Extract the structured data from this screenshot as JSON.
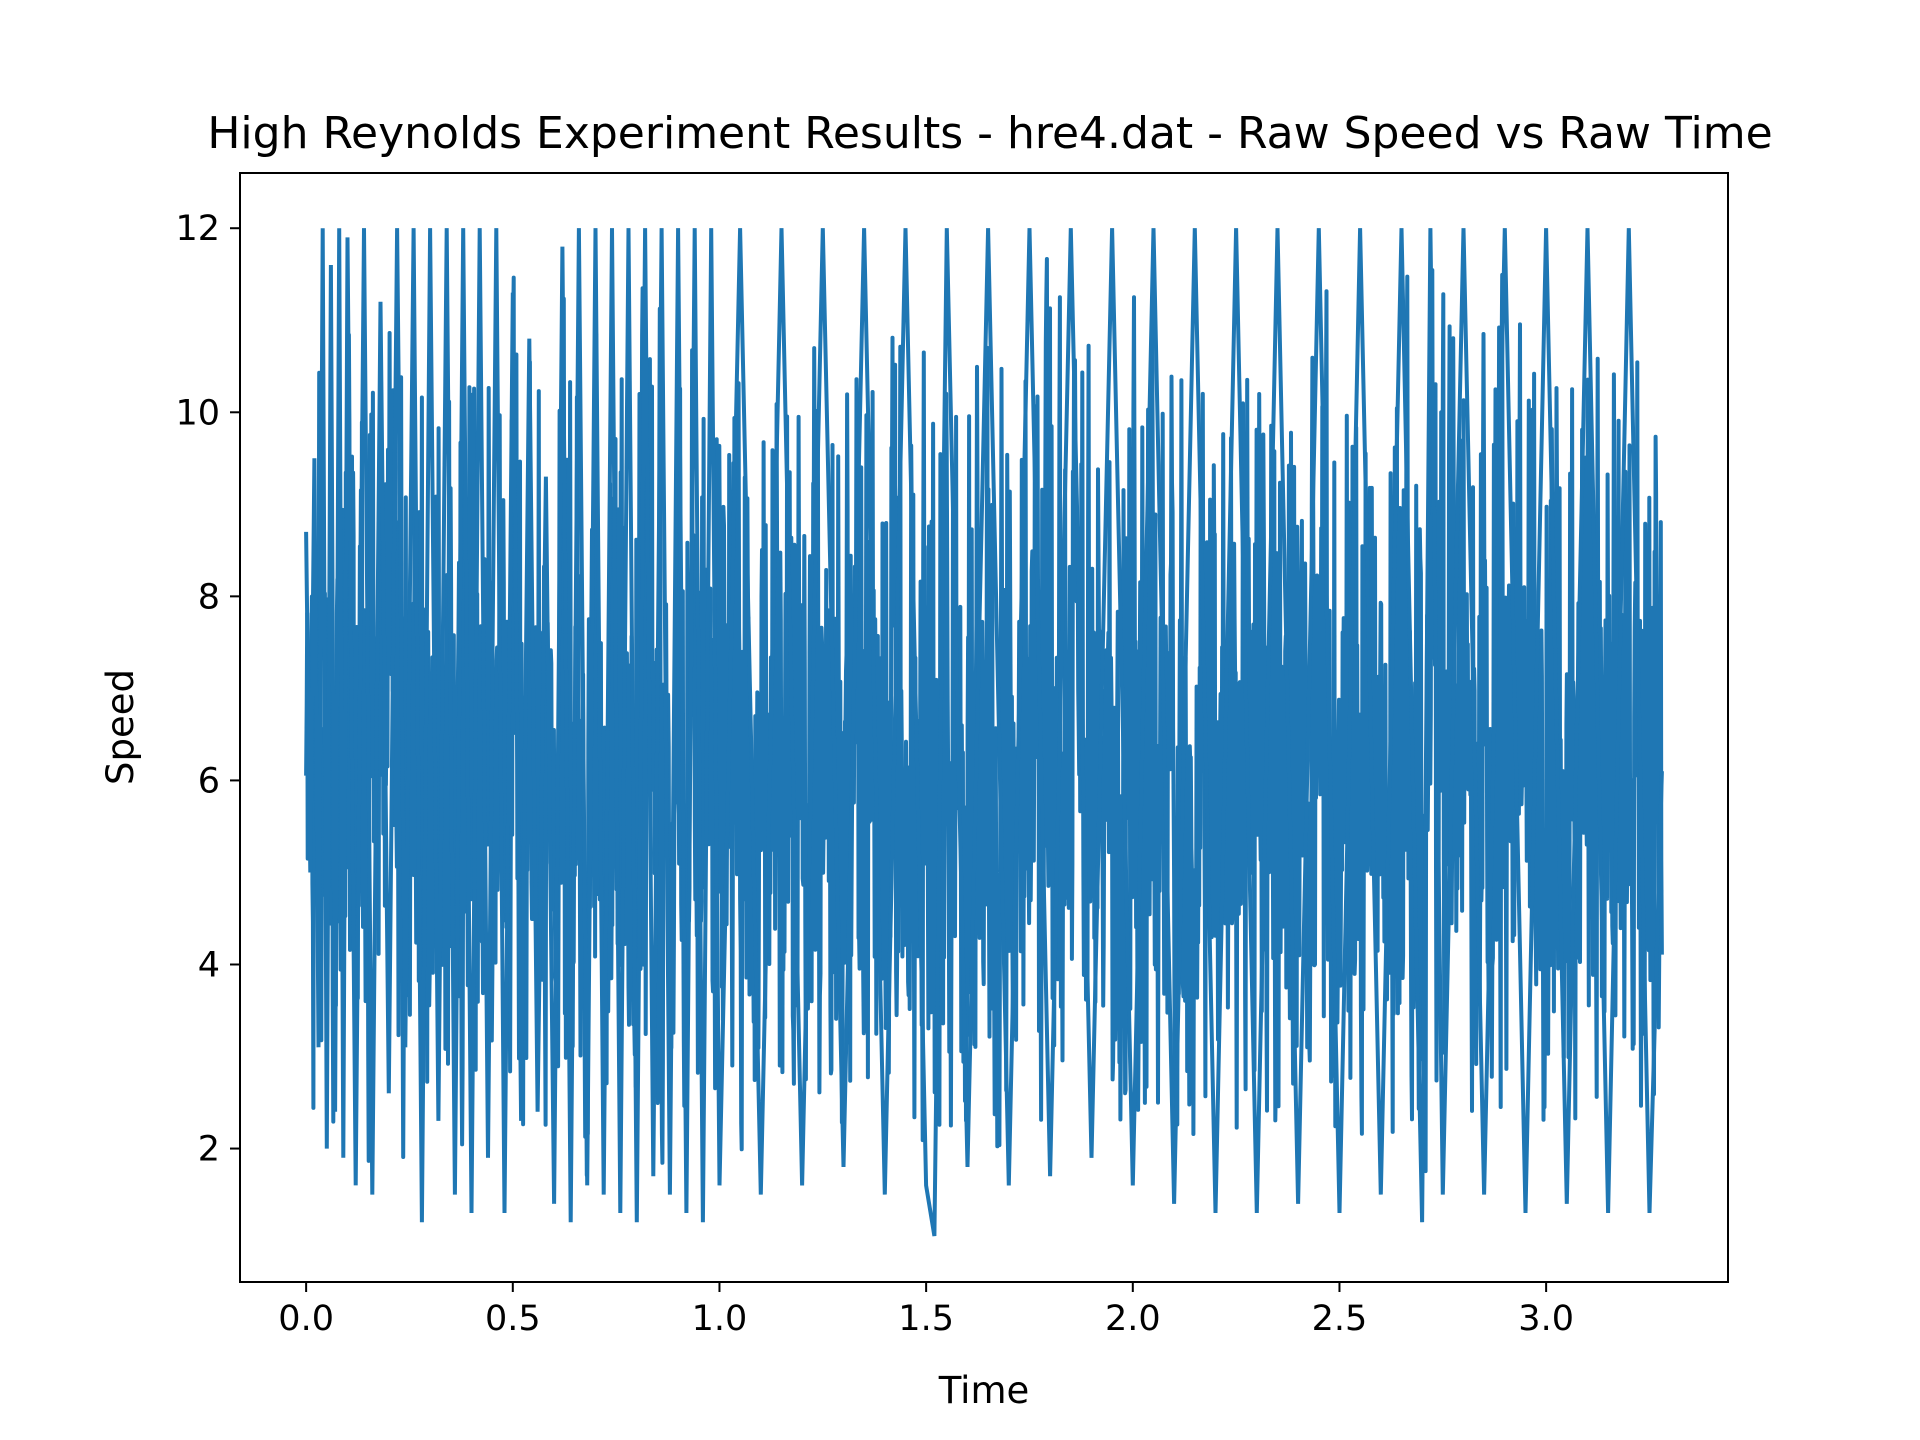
{
  "chart_data": {
    "type": "line",
    "title": "High Reynolds Experiment Results - hre4.dat - Raw Speed vs Raw Time",
    "xlabel": "Time",
    "ylabel": "Speed",
    "xlim": [
      -0.16,
      3.44
    ],
    "ylim": [
      0.55,
      12.6
    ],
    "xticks": [
      0.0,
      0.5,
      1.0,
      1.5,
      2.0,
      2.5,
      3.0
    ],
    "xtick_labels": [
      "0.0",
      "0.5",
      "1.0",
      "1.5",
      "2.0",
      "2.5",
      "3.0"
    ],
    "yticks": [
      2,
      4,
      6,
      8,
      10,
      12
    ],
    "ytick_labels": [
      "2",
      "4",
      "6",
      "8",
      "10",
      "12"
    ],
    "grid": false,
    "legend": "none",
    "series": [
      {
        "color": "#1f77b4",
        "x_range": [
          0.0,
          3.28
        ],
        "y_range": [
          1.05,
          12.0
        ],
        "y_mean_approx": 6.0,
        "description_note": "dense noisy raw signal; approximate envelope points below",
        "x": [
          0.0,
          0.01,
          0.02,
          0.03,
          0.04,
          0.05,
          0.06,
          0.07,
          0.08,
          0.09,
          0.1,
          0.12,
          0.14,
          0.16,
          0.18,
          0.2,
          0.22,
          0.24,
          0.26,
          0.28,
          0.3,
          0.32,
          0.34,
          0.36,
          0.38,
          0.4,
          0.42,
          0.44,
          0.46,
          0.48,
          0.5,
          0.52,
          0.54,
          0.56,
          0.58,
          0.6,
          0.62,
          0.64,
          0.66,
          0.68,
          0.7,
          0.72,
          0.74,
          0.76,
          0.78,
          0.8,
          0.82,
          0.84,
          0.86,
          0.88,
          0.9,
          0.92,
          0.94,
          0.96,
          0.98,
          1.0,
          1.05,
          1.1,
          1.15,
          1.2,
          1.25,
          1.3,
          1.35,
          1.4,
          1.45,
          1.5,
          1.52,
          1.55,
          1.6,
          1.65,
          1.7,
          1.75,
          1.8,
          1.85,
          1.9,
          1.95,
          2.0,
          2.05,
          2.1,
          2.15,
          2.2,
          2.25,
          2.3,
          2.35,
          2.4,
          2.45,
          2.5,
          2.55,
          2.6,
          2.65,
          2.7,
          2.72,
          2.75,
          2.8,
          2.85,
          2.9,
          2.95,
          3.0,
          3.05,
          3.1,
          3.15,
          3.2,
          3.25,
          3.28
        ],
        "y": [
          8.7,
          5.0,
          9.5,
          3.1,
          12.0,
          2.0,
          11.6,
          2.4,
          12.0,
          1.9,
          11.9,
          1.6,
          12.0,
          1.5,
          11.2,
          2.6,
          12.0,
          3.1,
          12.0,
          1.2,
          12.0,
          2.3,
          12.0,
          1.5,
          12.0,
          1.3,
          12.0,
          1.9,
          12.0,
          1.3,
          11.3,
          2.3,
          10.8,
          2.4,
          9.3,
          1.4,
          11.8,
          1.2,
          12.0,
          1.6,
          12.0,
          1.5,
          12.0,
          1.3,
          12.0,
          1.2,
          12.0,
          1.7,
          12.0,
          1.5,
          12.0,
          1.3,
          12.0,
          1.2,
          12.0,
          1.6,
          12.0,
          1.5,
          12.0,
          1.6,
          12.0,
          1.8,
          12.0,
          1.5,
          12.0,
          1.6,
          1.05,
          12.0,
          1.8,
          12.0,
          1.6,
          12.0,
          1.7,
          12.0,
          1.9,
          12.0,
          1.6,
          12.0,
          1.4,
          12.0,
          1.3,
          12.0,
          1.3,
          12.0,
          1.4,
          12.0,
          1.3,
          12.0,
          1.5,
          12.0,
          1.2,
          12.0,
          1.5,
          12.0,
          1.5,
          12.0,
          1.3,
          12.0,
          1.4,
          12.0,
          1.3,
          12.0,
          1.3,
          6.1
        ]
      }
    ]
  }
}
